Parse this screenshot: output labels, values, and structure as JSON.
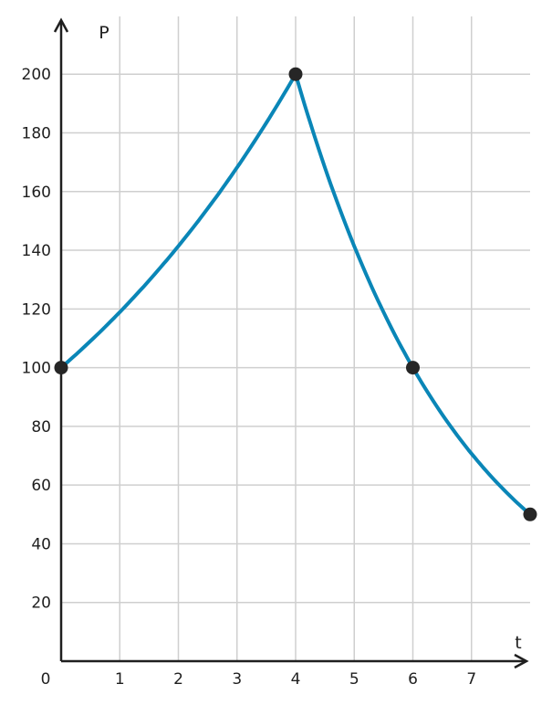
{
  "chart_data": {
    "type": "line",
    "xlabel": "t",
    "ylabel": "P",
    "origin_label": "0",
    "xlim": [
      0,
      8
    ],
    "ylim": [
      0,
      220
    ],
    "x_ticks": [
      1,
      2,
      3,
      4,
      5,
      6,
      7
    ],
    "x_tick_labels": [
      "1",
      "2",
      "3",
      "4",
      "5",
      "6",
      "7"
    ],
    "y_ticks": [
      20,
      40,
      60,
      80,
      100,
      120,
      140,
      160,
      180,
      200
    ],
    "y_tick_labels": [
      "20",
      "40",
      "60",
      "80",
      "100",
      "120",
      "140",
      "160",
      "180",
      "200"
    ],
    "grid": true,
    "series": [
      {
        "x": [
          0,
          0.5,
          1,
          1.5,
          2,
          2.5,
          3,
          3.5,
          4,
          4.5,
          5,
          5.5,
          6,
          6.5,
          7,
          7.5,
          8
        ],
        "y": [
          100,
          109,
          119,
          130,
          141,
          154,
          168,
          183,
          200,
          168,
          141,
          119,
          100,
          84,
          71,
          59,
          50
        ]
      }
    ],
    "points": [
      {
        "x": 0,
        "y": 100
      },
      {
        "x": 4,
        "y": 200
      },
      {
        "x": 6,
        "y": 100
      },
      {
        "x": 8,
        "y": 50
      }
    ],
    "colors": {
      "curve": "#0a86b7",
      "points": "#262626",
      "axis": "#1f1f1f",
      "grid": "#cfcfcf"
    }
  }
}
